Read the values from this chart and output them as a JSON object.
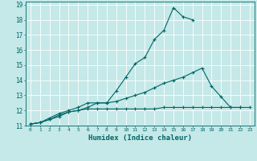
{
  "xlabel": "Humidex (Indice chaleur)",
  "background_color": "#c5e8e8",
  "grid_color": "#ffffff",
  "line_color": "#006666",
  "xlim": [
    -0.5,
    23.5
  ],
  "ylim": [
    11,
    19.2
  ],
  "x": [
    0,
    1,
    2,
    3,
    4,
    5,
    6,
    7,
    8,
    9,
    10,
    11,
    12,
    13,
    14,
    15,
    16,
    17,
    18,
    19,
    20,
    21,
    22,
    23
  ],
  "line1": [
    11.1,
    11.2,
    11.4,
    11.7,
    11.9,
    12.0,
    12.2,
    12.5,
    12.5,
    13.3,
    14.2,
    15.1,
    15.5,
    16.7,
    17.3,
    18.8,
    18.2,
    18.0,
    null,
    null,
    null,
    null,
    null,
    null
  ],
  "line2": [
    11.1,
    11.2,
    11.5,
    11.8,
    12.0,
    12.2,
    12.5,
    12.5,
    12.5,
    12.6,
    12.8,
    13.0,
    13.2,
    13.5,
    13.8,
    14.0,
    14.2,
    14.5,
    14.8,
    13.6,
    12.9,
    12.2,
    12.2,
    null
  ],
  "line3": [
    11.1,
    11.2,
    11.4,
    11.6,
    11.9,
    12.0,
    12.1,
    12.1,
    12.1,
    12.1,
    12.1,
    12.1,
    12.1,
    12.1,
    12.2,
    12.2,
    12.2,
    12.2,
    12.2,
    12.2,
    12.2,
    12.2,
    12.2,
    12.2
  ]
}
